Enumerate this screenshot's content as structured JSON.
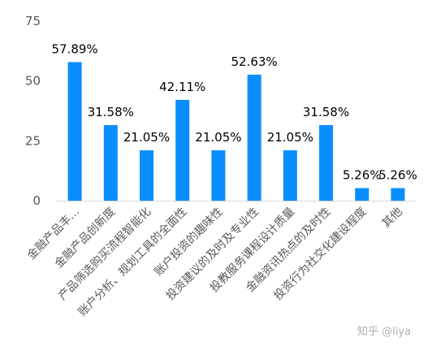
{
  "chart_data": {
    "type": "bar",
    "categories": [
      "金融产品丰...",
      "金融产品创新度",
      "产品筛选购买流程智能化",
      "账户分析、规划工具的全面性",
      "账户投资的趣味性",
      "投资建议的及时及专业性",
      "投教服务课程设计质量",
      "金融资讯热点的及时性",
      "投资行为社交化建设程度",
      "其他"
    ],
    "values": [
      57.89,
      31.58,
      21.05,
      42.11,
      21.05,
      52.63,
      21.05,
      31.58,
      5.26,
      5.26
    ],
    "data_labels": [
      "57.89%",
      "31.58%",
      "21.05%",
      "42.11%",
      "21.05%",
      "52.63%",
      "21.05%",
      "31.58%",
      "5.26%",
      "5.26%"
    ],
    "yticks": [
      "0",
      "25",
      "50",
      "75"
    ],
    "ylim": [
      0,
      75
    ],
    "bar_color": "#0a8eff",
    "grid": false,
    "legend": "none"
  },
  "watermark": "知乎 @liya"
}
